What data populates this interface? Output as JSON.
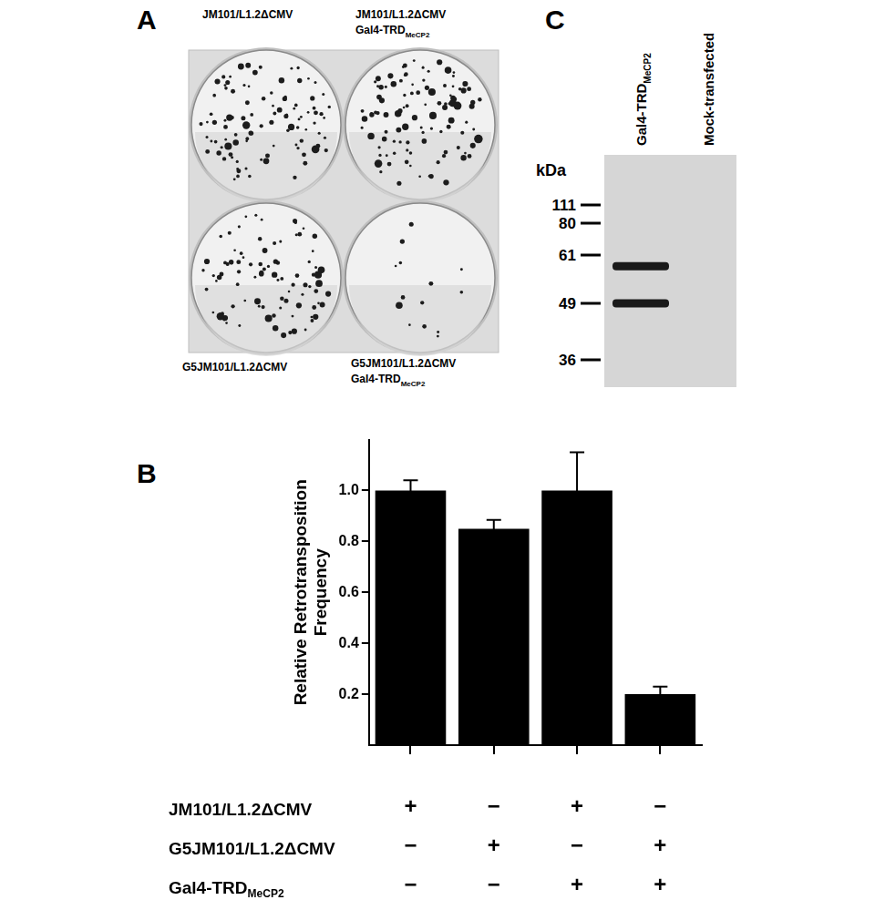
{
  "panel_a": {
    "panel_label": "A",
    "plates": [
      {
        "lines": [
          {
            "text": "JM101/L1.2ΔCMV"
          }
        ],
        "colonies": 100
      },
      {
        "lines": [
          {
            "text": "JM101/L1.2ΔCMV"
          },
          {
            "text": "Gal4-TRD",
            "sub": "MeCP2"
          }
        ],
        "colonies": 110
      },
      {
        "lines": [
          {
            "text": "G5JM101/L1.2ΔCMV"
          }
        ],
        "colonies": 90
      },
      {
        "lines": [
          {
            "text": "G5JM101/L1.2ΔCMV"
          },
          {
            "text": "Gal4-TRD",
            "sub": "MeCP2"
          }
        ],
        "colonies": 14
      }
    ]
  },
  "chart_data": {
    "type": "bar",
    "panel_label": "B",
    "y_label": "Relative Retrotransposition Frequency",
    "categories": [
      null,
      null,
      null,
      null
    ],
    "values": [
      1.0,
      0.85,
      1.0,
      0.2
    ],
    "errors": [
      0.04,
      0.035,
      0.15,
      0.03
    ],
    "color": "#000000",
    "ylim": [
      0,
      1.2
    ],
    "yticks": [
      0.2,
      0.4,
      0.6,
      0.8,
      {
        "value": 1,
        "label": "1.0"
      }
    ],
    "grid": false,
    "tick_labels": "y",
    "conditions": [
      {
        "label": {
          "text": "JM101/L1.2ΔCMV"
        },
        "marks": [
          "+",
          "−",
          "+",
          "−"
        ]
      },
      {
        "label": {
          "text": "G5JM101/L1.2ΔCMV"
        },
        "marks": [
          "−",
          "+",
          "−",
          "+"
        ]
      },
      {
        "label": {
          "text": "Gal4-TRD",
          "sub": "MeCP2"
        },
        "marks": [
          "−",
          "−",
          "+",
          "+"
        ]
      }
    ]
  },
  "panel_c": {
    "panel_label": "C",
    "axis_label": "kDa",
    "markers": [
      111,
      80,
      61,
      49,
      36
    ],
    "lanes": [
      {
        "label": {
          "text": "Gal4-TRD",
          "sub": "MeCP2"
        },
        "bands_kda": [
          58,
          49
        ]
      },
      {
        "label": {
          "text": "Mock-transfected"
        },
        "bands_kda": []
      }
    ]
  }
}
